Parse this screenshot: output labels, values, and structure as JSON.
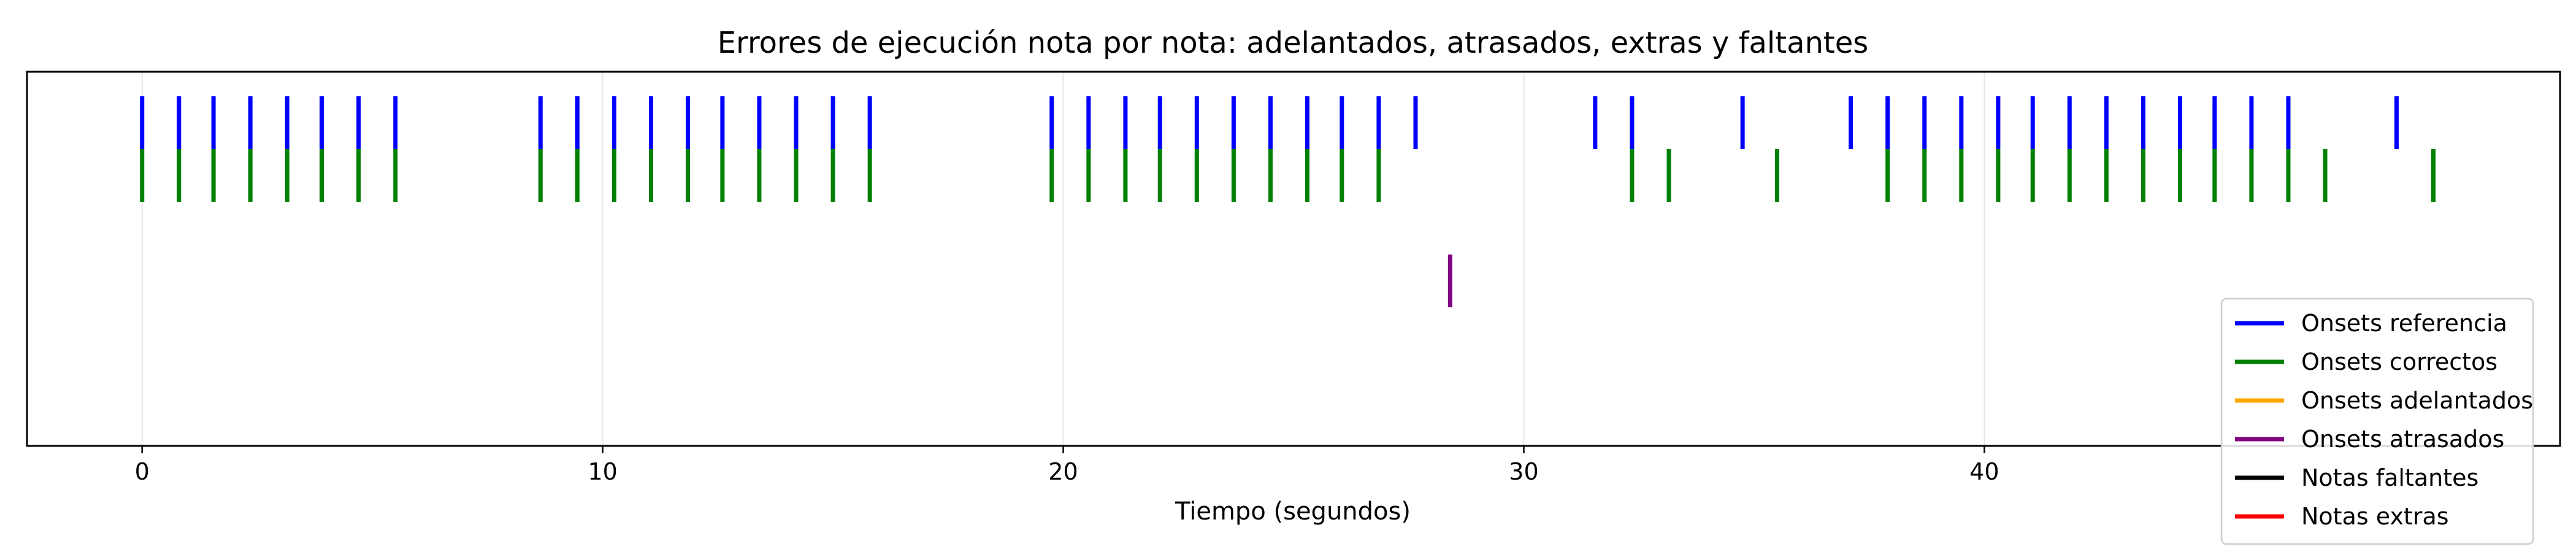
{
  "chart_data": {
    "type": "event-raster",
    "title": "Errores de ejecución nota por nota: adelantados, atrasados, extras y faltantes",
    "xlabel": "Tiempo (segundos)",
    "ylabel": "",
    "xlim": [
      -2.5,
      52.5
    ],
    "xticks": [
      "0",
      "10",
      "20",
      "30",
      "40"
    ],
    "grid": "x",
    "legend_position": "bottom-right",
    "series": [
      {
        "name": "Onsets referencia",
        "color": "#0000ff",
        "row": 1,
        "values": [
          0.0,
          0.8,
          1.55,
          2.35,
          3.15,
          3.9,
          4.7,
          5.5,
          8.65,
          9.45,
          10.25,
          11.05,
          11.85,
          12.6,
          13.4,
          14.2,
          15.0,
          15.8,
          19.75,
          20.55,
          21.35,
          22.1,
          22.9,
          23.7,
          24.5,
          25.3,
          26.05,
          26.85,
          27.65,
          31.55,
          32.35,
          34.75,
          37.1,
          37.9,
          38.7,
          39.5,
          40.3,
          41.05,
          41.85,
          42.65,
          43.45,
          44.25,
          45.0,
          45.8,
          46.6,
          48.95
        ]
      },
      {
        "name": "Onsets correctos",
        "color": "#008000",
        "row": 2,
        "values": [
          0.0,
          0.8,
          1.55,
          2.35,
          3.15,
          3.9,
          4.7,
          5.5,
          8.65,
          9.45,
          10.25,
          11.05,
          11.85,
          12.6,
          13.4,
          14.2,
          15.0,
          15.8,
          19.75,
          20.55,
          21.35,
          22.1,
          22.9,
          23.7,
          24.5,
          25.3,
          26.05,
          26.85,
          32.35,
          33.15,
          35.5,
          37.9,
          38.7,
          39.5,
          40.3,
          41.05,
          41.85,
          42.65,
          43.45,
          44.25,
          45.0,
          45.8,
          46.6,
          47.4,
          49.75
        ]
      },
      {
        "name": "Onsets adelantados",
        "color": "#ffa500",
        "row": 3,
        "values": []
      },
      {
        "name": "Onsets atrasados",
        "color": "#800080",
        "row": 4,
        "values": [
          28.4
        ]
      },
      {
        "name": "Notas faltantes",
        "color": "#000000",
        "row": 5,
        "values": []
      },
      {
        "name": "Notas extras",
        "color": "#ff0000",
        "row": 6,
        "values": []
      }
    ]
  }
}
